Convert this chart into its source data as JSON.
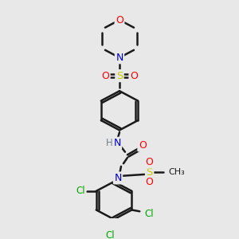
{
  "bg_color": "#e8e8e8",
  "atom_colors": {
    "C": "#000000",
    "N": "#0000cc",
    "O": "#ff0000",
    "S": "#cccc00",
    "Cl": "#00aa00",
    "H": "#708090"
  },
  "bond_color": "#1a1a1a",
  "line_width": 1.8,
  "figsize": [
    3.0,
    3.0
  ],
  "dpi": 100
}
